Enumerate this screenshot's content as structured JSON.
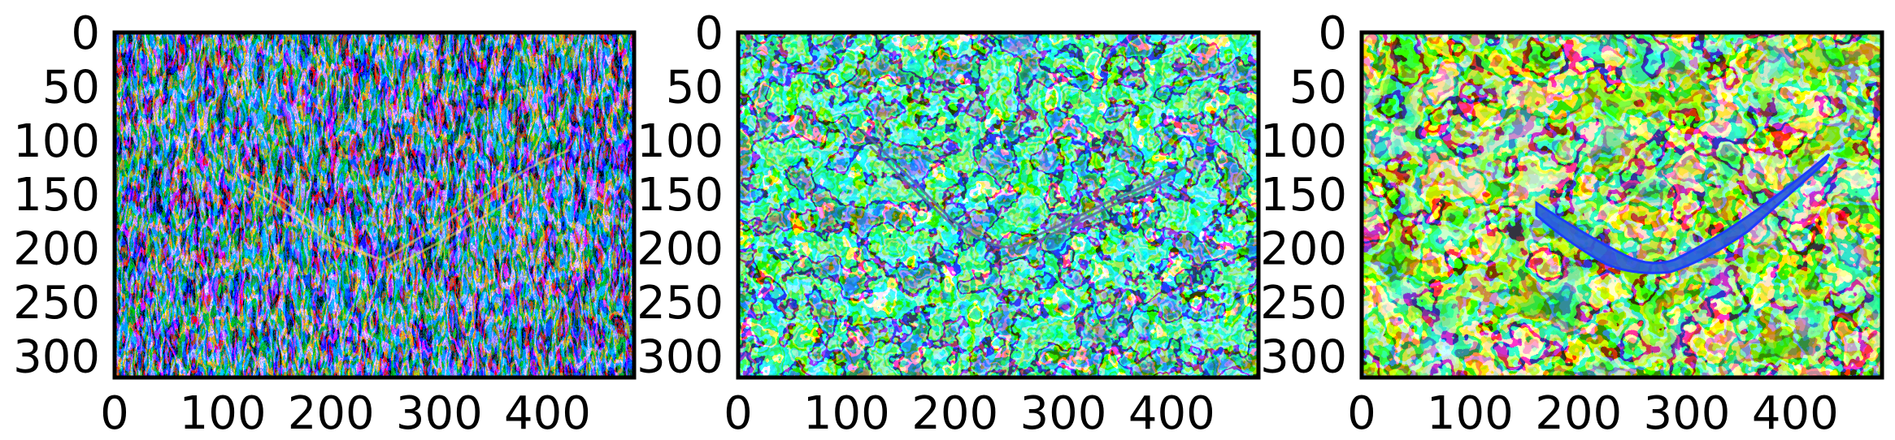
{
  "chart_data": [
    {
      "type": "heatmap",
      "panel": "left",
      "title": "",
      "xlabel": "",
      "ylabel": "",
      "xlim": [
        0,
        480
      ],
      "ylim": [
        320,
        0
      ],
      "x_ticks": [
        "0",
        "100",
        "200",
        "300",
        "400"
      ],
      "y_ticks": [
        "0",
        "50",
        "100",
        "150",
        "200",
        "250",
        "300"
      ],
      "colormap": "jet",
      "texture": "fine blocky noise with vertical streaks; a faint diagonal bird-like shape across the center",
      "dominant_colors": [
        "#1a3cff",
        "#00c8ff",
        "#c00000",
        "#ffd000",
        "#7fff7f"
      ]
    },
    {
      "type": "heatmap",
      "panel": "middle",
      "title": "",
      "xlabel": "",
      "ylabel": "",
      "xlim": [
        0,
        480
      ],
      "ylim": [
        320,
        0
      ],
      "x_ticks": [
        "0",
        "100",
        "200",
        "300",
        "400"
      ],
      "y_ticks": [
        "0",
        "50",
        "100",
        "150",
        "200",
        "250",
        "300"
      ],
      "colormap": "jet",
      "texture": "contour-like blobs; a faint diagonal bird-like shape across the center",
      "dominant_colors": [
        "#30e0c8",
        "#a0ff60",
        "#1a3cff",
        "#ff9000",
        "#500000",
        "#3ca0ff"
      ]
    },
    {
      "type": "heatmap",
      "panel": "right",
      "title": "",
      "xlabel": "",
      "ylabel": "",
      "xlim": [
        0,
        480
      ],
      "ylim": [
        320,
        0
      ],
      "x_ticks": [
        "0",
        "100",
        "200",
        "300",
        "400"
      ],
      "y_ticks": [
        "0",
        "50",
        "100",
        "150",
        "200",
        "250",
        "300"
      ],
      "colormap": "jet",
      "texture": "large smooth blobs; a clear blue diagonal bird-like shape across the center",
      "dominant_colors": [
        "#30e0c8",
        "#c8ff40",
        "#1a3cff",
        "#700000",
        "#ff3000",
        "#ffa000"
      ]
    }
  ]
}
